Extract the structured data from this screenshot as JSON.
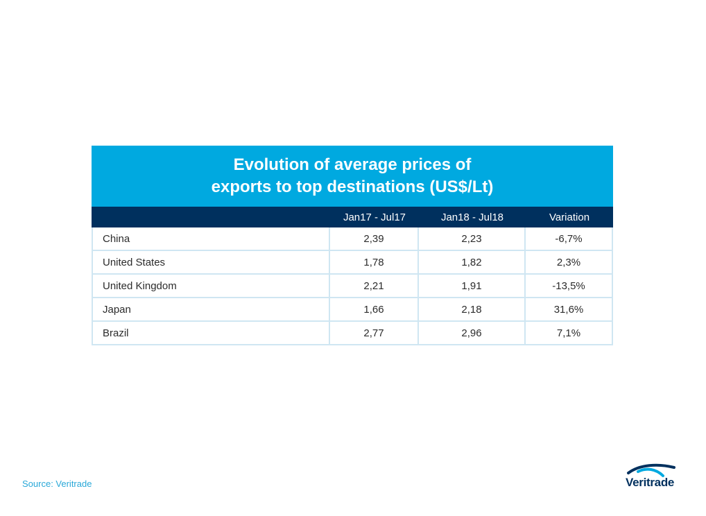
{
  "chart_data": {
    "type": "table",
    "title": [
      "Evolution of average prices of",
      "exports to top destinations (US$/Lt)"
    ],
    "columns": [
      "",
      "Jan17 - Jul17",
      "Jan18 - Jul18",
      "Variation"
    ],
    "rows": [
      [
        "China",
        "2,39",
        "2,23",
        "-6,7%"
      ],
      [
        "United States",
        "1,78",
        "1,82",
        "2,3%"
      ],
      [
        "United Kingdom",
        "2,21",
        "1,91",
        "-13,5%"
      ],
      [
        "Japan",
        "1,66",
        "2,18",
        "31,6%"
      ],
      [
        "Brazil",
        "2,77",
        "2,96",
        "7,1%"
      ]
    ]
  },
  "source": "Source: Veritrade",
  "logo": {
    "text": "Veritrade"
  },
  "colors": {
    "title_band": "#00a9e0",
    "header_band": "#00305e",
    "grid": "#cfe6f2",
    "source_text": "#29a8d8"
  }
}
